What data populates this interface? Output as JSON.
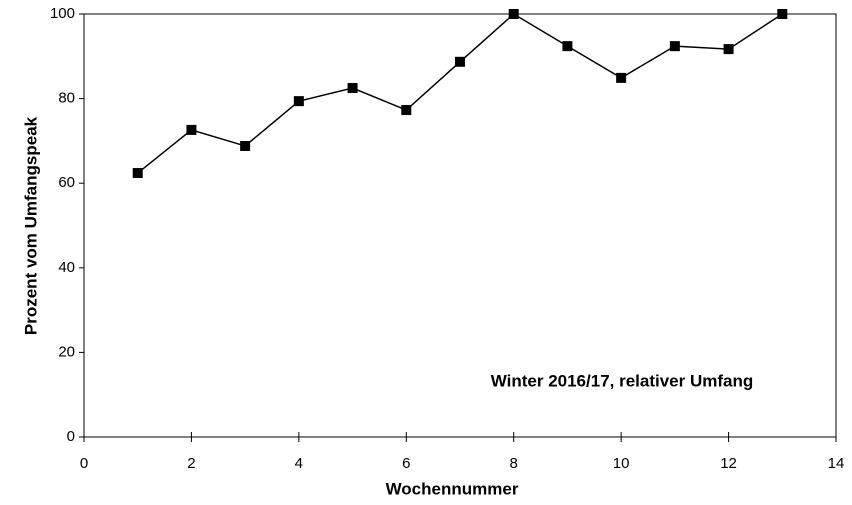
{
  "chart_data": {
    "type": "line",
    "annotation": "Winter 2016/17, relativer Umfang",
    "x_label": "Wochennummer",
    "y_label": "Prozent vom Umfangspeak",
    "x": [
      1,
      2,
      3,
      4,
      5,
      6,
      7,
      8,
      9,
      10,
      11,
      12,
      13
    ],
    "values": [
      62.4,
      72.6,
      68.8,
      79.4,
      82.5,
      77.3,
      88.7,
      100,
      92.4,
      84.9,
      92.4,
      91.7,
      100
    ],
    "color": "#000000",
    "marker": "square",
    "xlim": [
      0,
      14
    ],
    "xticks": [
      0,
      2,
      4,
      6,
      8,
      10,
      12,
      14
    ],
    "ylim": [
      0,
      100
    ],
    "yticks": [
      0,
      20,
      40,
      60,
      80,
      100
    ],
    "grid": false
  }
}
